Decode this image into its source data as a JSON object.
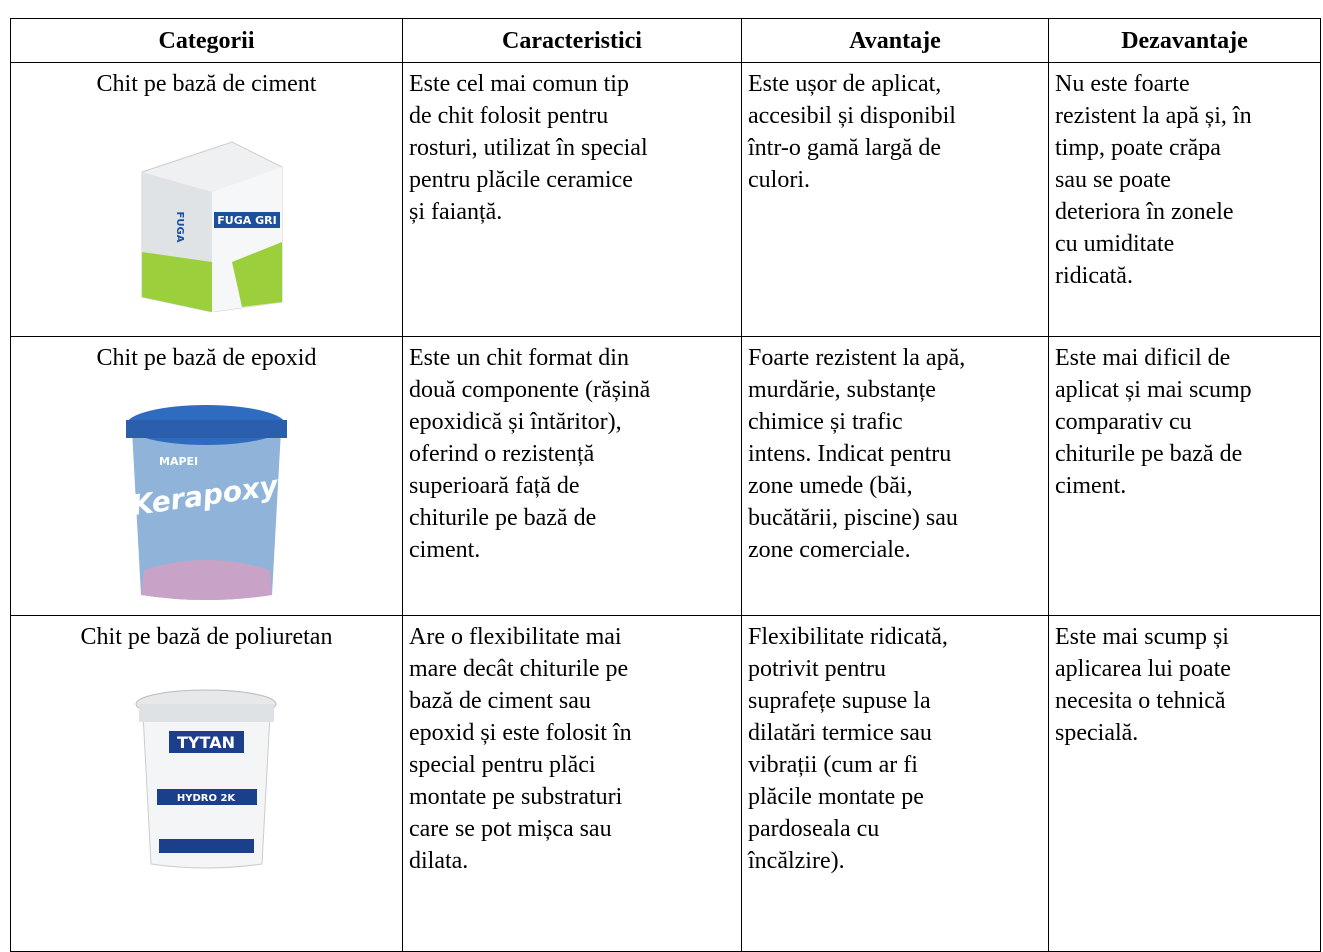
{
  "table": {
    "headers": [
      "Categorii",
      "Caracteristici",
      "Avantaje",
      "Dezavantaje"
    ],
    "rows": [
      {
        "category": "Chit pe bază de ciment",
        "image_text": [
          "FUGA GRI",
          "FUGA"
        ],
        "cells": [
          [
            "Este cel mai comun tip",
            "de chit folosit pentru",
            "rosturi, utilizat în special",
            "pentru plăcile ceramice",
            "și faianță."
          ],
          [
            "Este ușor de aplicat,",
            "accesibil și disponibil",
            "într-o gamă largă de",
            "culori."
          ],
          [
            "Nu este foarte",
            "rezistent la apă și, în",
            "timp, poate crăpa",
            "sau se poate",
            "deteriora în zonele",
            "cu umiditate",
            "ridicată."
          ]
        ]
      },
      {
        "category": "Chit pe bază de epoxid",
        "image_text": [
          "MAPEI",
          "Kerapoxy"
        ],
        "cells": [
          [
            "Este un chit format din",
            "două componente (rășină",
            "epoxidică și întăritor),",
            "oferind o rezistență",
            "superioară față de",
            "chiturile pe bază de",
            "ciment."
          ],
          [
            "Foarte rezistent la apă,",
            "murdărie, substanțe",
            "chimice și trafic",
            "intens. Indicat pentru",
            "zone umede (băi,",
            "bucătării, piscine) sau",
            "zone comerciale."
          ],
          [
            "Este mai dificil de",
            "aplicat și mai scump",
            "comparativ cu",
            "chiturile pe bază de",
            "ciment."
          ]
        ]
      },
      {
        "category": "Chit pe bază de poliuretan",
        "image_text": [
          "TYTAN",
          "HYDRO 2K"
        ],
        "cells": [
          [
            "Are o flexibilitate mai",
            "mare decât chiturile pe",
            "bază de ciment sau",
            "epoxid și este folosit în",
            "special pentru plăci",
            "montate pe substraturi",
            "care se pot mișca sau",
            "dilata."
          ],
          [
            "Flexibilitate ridicată,",
            "potrivit pentru",
            "suprafețe supuse la",
            "dilatări termice sau",
            "vibrații (cum ar fi",
            "plăcile montate pe",
            "pardoseala cu",
            "încălzire)."
          ],
          [
            "Este mai scump și",
            "aplicarea lui poate",
            "necesita o tehnică",
            "specială."
          ]
        ]
      }
    ]
  }
}
